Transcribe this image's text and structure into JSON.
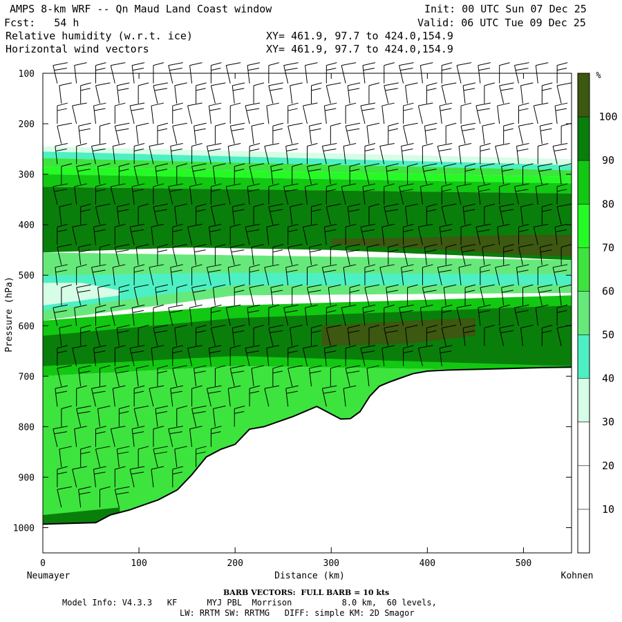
{
  "header": {
    "title": "AMPS 8-km WRF -- Qn Maud Land Coast window",
    "init": "Init: 00 UTC Sun 07 Dec 25",
    "fcst": "Fcst:   54 h",
    "valid": "Valid: 06 UTC Tue 09 Dec 25",
    "field1": "Relative humidity (w.r.t. ice)",
    "field2": "Horizontal wind vectors",
    "xy1": "XY= 461.9, 97.7 to 424.0,154.9",
    "xy2": "XY= 461.9, 97.7 to 424.0,154.9"
  },
  "footer": {
    "barb_note": "BARB VECTORS:  FULL BARB = 10 kts",
    "model_info": "Model Info: V4.3.3   KF      MYJ PBL  Morrison          8.0 km,  60 levels,",
    "physics": "LW: RRTM SW: RRTMG   DIFF: simple KM: 2D Smagor"
  },
  "colors": {
    "band_30_40": "#d6fde6",
    "band_40_50": "#4df0c3",
    "band_50_60": "#66e97a",
    "band_60_70": "#3de43d",
    "band_70_80": "#25fa25",
    "band_80_90": "#12c812",
    "band_90_100": "#0a7e0a",
    "band_100_plus": "#3d5810",
    "terrain_line": "#000000"
  },
  "chart_data": {
    "type": "cross-section",
    "title": "Relative humidity (w.r.t. ice) and Horizontal wind vectors",
    "xlabel": "Distance (km)",
    "ylabel": "Pressure (hPa)",
    "xlim": [
      0,
      550
    ],
    "ylim": [
      1050,
      100
    ],
    "x_ticks": [
      0,
      100,
      200,
      300,
      400,
      500
    ],
    "y_ticks": [
      100,
      200,
      300,
      400,
      500,
      600,
      700,
      800,
      900,
      1000
    ],
    "x_start_label": "Neumayer",
    "x_end_label": "Kohnen",
    "colorbar": {
      "unit": "%",
      "levels": [
        10,
        20,
        30,
        40,
        50,
        60,
        70,
        80,
        90,
        100
      ]
    },
    "terrain_surface_hPa": {
      "x": [
        0,
        55,
        70,
        90,
        105,
        120,
        140,
        155,
        170,
        185,
        200,
        215,
        230,
        245,
        260,
        270,
        285,
        300,
        310,
        320,
        330,
        340,
        350,
        360,
        370,
        385,
        400,
        420,
        440,
        460,
        480,
        500,
        520,
        550
      ],
      "p": [
        993,
        990,
        975,
        965,
        955,
        945,
        925,
        895,
        860,
        845,
        835,
        805,
        800,
        790,
        780,
        772,
        760,
        775,
        785,
        784,
        770,
        740,
        720,
        712,
        705,
        695,
        690,
        688,
        687,
        686,
        685,
        684,
        683,
        682
      ]
    },
    "rh_layers": [
      {
        "name": "upper dry edge",
        "band": "band_30_40",
        "top": {
          "x": [
            0,
            550
          ],
          "p": [
            245,
            270
          ]
        },
        "bottom": {
          "x": [
            0,
            550
          ],
          "p": [
            255,
            282
          ]
        }
      },
      {
        "name": "upper cloud-layer rim",
        "band": "band_40_50",
        "top": {
          "x": [
            0,
            550
          ],
          "p": [
            255,
            282
          ]
        },
        "bottom": {
          "x": [
            0,
            550
          ],
          "p": [
            268,
            292
          ]
        }
      },
      {
        "name": "upper moist layer 60-70",
        "band": "band_60_70",
        "top": {
          "x": [
            0,
            550
          ],
          "p": [
            268,
            292
          ]
        },
        "bottom": {
          "x": [
            0,
            550
          ],
          "p": [
            285,
            305
          ]
        }
      },
      {
        "name": "upper moist layer 70-80",
        "band": "band_70_80",
        "top": {
          "x": [
            0,
            550
          ],
          "p": [
            285,
            305
          ]
        },
        "bottom": {
          "x": [
            0,
            550
          ],
          "p": [
            300,
            318
          ]
        }
      },
      {
        "name": "upper moist layer 80-90",
        "band": "band_80_90",
        "top": {
          "x": [
            0,
            550
          ],
          "p": [
            300,
            318
          ]
        },
        "bottom": {
          "x": [
            0,
            550
          ],
          "p": [
            325,
            338
          ]
        }
      },
      {
        "name": "upper saturated core",
        "band": "band_90_100",
        "top": {
          "x": [
            0,
            550
          ],
          "p": [
            325,
            338
          ]
        },
        "bottom": {
          "x": [
            0,
            150,
            300,
            550
          ],
          "p": [
            455,
            445,
            450,
            470
          ]
        }
      },
      {
        "name": "ice-supersaturated pocket aloft",
        "band": "band_100_plus",
        "top": {
          "x": [
            300,
            400,
            500,
            550
          ],
          "p": [
            428,
            425,
            420,
            420
          ]
        },
        "bottom": {
          "x": [
            300,
            400,
            500,
            550
          ],
          "p": [
            440,
            448,
            460,
            462
          ]
        }
      },
      {
        "name": "mid-level dry slot rim",
        "band": "band_50_60",
        "top": {
          "x": [
            0,
            550
          ],
          "p": [
            455,
            470
          ]
        },
        "bottom": {
          "x": [
            0,
            200,
            550
          ],
          "p": [
            590,
            540,
            535
          ]
        }
      },
      {
        "name": "mid-level dry slot",
        "band": "band_40_50",
        "top": {
          "x": [
            0,
            200,
            550
          ],
          "p": [
            500,
            495,
            498
          ]
        },
        "bottom": {
          "x": [
            0,
            200,
            550
          ],
          "p": [
            570,
            520,
            520
          ]
        }
      },
      {
        "name": "driest slot",
        "band": "band_30_40",
        "top": {
          "x": [
            0,
            40,
            80
          ],
          "p": [
            515,
            515,
            530
          ]
        },
        "bottom": {
          "x": [
            0,
            40,
            80
          ],
          "p": [
            560,
            550,
            540
          ]
        }
      },
      {
        "name": "lower moist layer 80-90",
        "band": "band_80_90",
        "top": {
          "x": [
            0,
            200,
            550
          ],
          "p": [
            590,
            560,
            540
          ]
        },
        "bottom": {
          "x": [
            0,
            200,
            550
          ],
          "p": [
            700,
            680,
            690
          ]
        }
      },
      {
        "name": "lower saturated core",
        "band": "band_90_100",
        "top": {
          "x": [
            0,
            200,
            550
          ],
          "p": [
            620,
            585,
            560
          ]
        },
        "bottom": {
          "x": [
            0,
            200,
            550
          ],
          "p": [
            680,
            660,
            680
          ]
        }
      },
      {
        "name": "lower supersaturated pocket",
        "band": "band_100_plus",
        "top": {
          "x": [
            290,
            380,
            450
          ],
          "p": [
            600,
            590,
            585
          ]
        },
        "bottom": {
          "x": [
            290,
            380,
            450
          ],
          "p": [
            640,
            635,
            620
          ]
        }
      },
      {
        "name": "boundary-layer moist air",
        "band": "band_60_70",
        "top": {
          "x": [
            0,
            200,
            550
          ],
          "p": [
            700,
            680,
            690
          ]
        },
        "bottom": "terrain"
      },
      {
        "name": "near-surface high RH",
        "band": "band_90_100",
        "top": {
          "x": [
            0,
            80
          ],
          "p": [
            975,
            960
          ]
        },
        "bottom": "terrain"
      }
    ],
    "wind_barbs": {
      "note": "FULL BARB = 10 kts",
      "x_km": [
        15,
        35,
        55,
        75,
        95,
        115,
        135,
        155,
        175,
        195,
        215,
        235,
        255,
        275,
        295,
        315,
        335,
        355,
        375,
        395,
        415,
        435,
        455,
        475,
        495,
        515,
        535
      ],
      "levels_hPa": [
        120,
        160,
        200,
        240,
        280,
        320,
        360,
        400,
        440,
        480,
        520,
        560,
        600,
        640,
        680,
        720,
        760,
        800,
        840,
        880,
        920,
        960
      ],
      "typical_speed_kts": 20,
      "typical_direction_deg": 270
    }
  }
}
